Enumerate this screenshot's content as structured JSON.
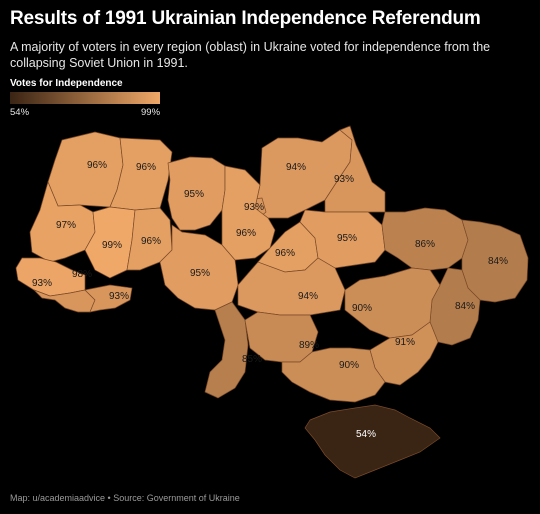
{
  "title": "Results of 1991 Ukrainian Independence Referendum",
  "subtitle": "A majority of voters in every region (oblast) in Ukraine voted for independence from the collapsing Soviet Union in 1991.",
  "legend": {
    "title": "Votes for Independence",
    "min_label": "54%",
    "max_label": "99%",
    "min": 54,
    "max": 99,
    "color_low": "#3a2414",
    "color_high": "#f0a868"
  },
  "regions": [
    {
      "label": "96%",
      "value": 96
    },
    {
      "label": "96%",
      "value": 96
    },
    {
      "label": "94%",
      "value": 94
    },
    {
      "label": "93%",
      "value": 93
    },
    {
      "label": "97%",
      "value": 97
    },
    {
      "label": "95%",
      "value": 95
    },
    {
      "label": "93%",
      "value": 93
    },
    {
      "label": "99%",
      "value": 99
    },
    {
      "label": "96%",
      "value": 96
    },
    {
      "label": "96%",
      "value": 96
    },
    {
      "label": "96%",
      "value": 96
    },
    {
      "label": "95%",
      "value": 95
    },
    {
      "label": "86%",
      "value": 86
    },
    {
      "label": "84%",
      "value": 84
    },
    {
      "label": "98%",
      "value": 98
    },
    {
      "label": "95%",
      "value": 95
    },
    {
      "label": "93%",
      "value": 93
    },
    {
      "label": "93%",
      "value": 93
    },
    {
      "label": "94%",
      "value": 94
    },
    {
      "label": "84%",
      "value": 84
    },
    {
      "label": "90%",
      "value": 90
    },
    {
      "label": "85%",
      "value": 85
    },
    {
      "label": "89%",
      "value": 89
    },
    {
      "label": "91%",
      "value": 91
    },
    {
      "label": "90%",
      "value": 90
    },
    {
      "label": "54%",
      "value": 54
    }
  ],
  "footer": "Map: u/academiaadvice • Source: Government of Ukraine"
}
